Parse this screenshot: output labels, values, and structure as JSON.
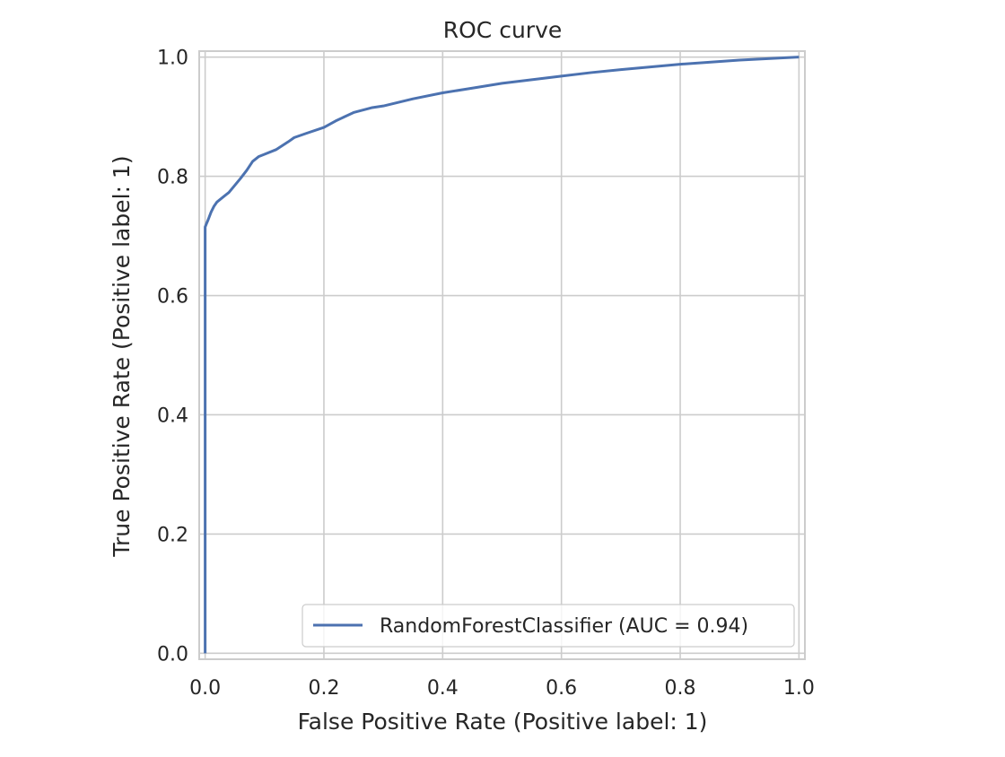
{
  "chart_data": {
    "type": "line",
    "title": "ROC curve",
    "xlabel": "False Positive Rate (Positive label: 1)",
    "ylabel": "True Positive Rate (Positive label: 1)",
    "xlim": [
      -0.01,
      1.01
    ],
    "ylim": [
      -0.01,
      1.01
    ],
    "x_ticks": [
      0.0,
      0.2,
      0.4,
      0.6,
      0.8,
      1.0
    ],
    "y_ticks": [
      0.0,
      0.2,
      0.4,
      0.6,
      0.8,
      1.0
    ],
    "x_tick_labels": [
      "0.0",
      "0.2",
      "0.4",
      "0.6",
      "0.8",
      "1.0"
    ],
    "y_tick_labels": [
      "0.0",
      "0.2",
      "0.4",
      "0.6",
      "0.8",
      "1.0"
    ],
    "grid": true,
    "legend_position": "lower-right",
    "series": [
      {
        "name": "RandomForestClassifier (AUC = 0.94)",
        "color": "#4c72b0",
        "x": [
          0.0,
          0.0,
          0.002,
          0.005,
          0.01,
          0.015,
          0.02,
          0.03,
          0.04,
          0.05,
          0.06,
          0.07,
          0.08,
          0.09,
          0.1,
          0.12,
          0.14,
          0.15,
          0.17,
          0.2,
          0.22,
          0.25,
          0.28,
          0.3,
          0.35,
          0.4,
          0.45,
          0.5,
          0.55,
          0.6,
          0.65,
          0.7,
          0.8,
          0.9,
          1.0
        ],
        "y": [
          0.0,
          0.715,
          0.72,
          0.727,
          0.74,
          0.75,
          0.757,
          0.765,
          0.773,
          0.785,
          0.797,
          0.81,
          0.825,
          0.833,
          0.837,
          0.845,
          0.858,
          0.865,
          0.872,
          0.882,
          0.893,
          0.907,
          0.915,
          0.918,
          0.93,
          0.94,
          0.948,
          0.956,
          0.962,
          0.968,
          0.974,
          0.979,
          0.988,
          0.995,
          1.0
        ]
      }
    ]
  }
}
